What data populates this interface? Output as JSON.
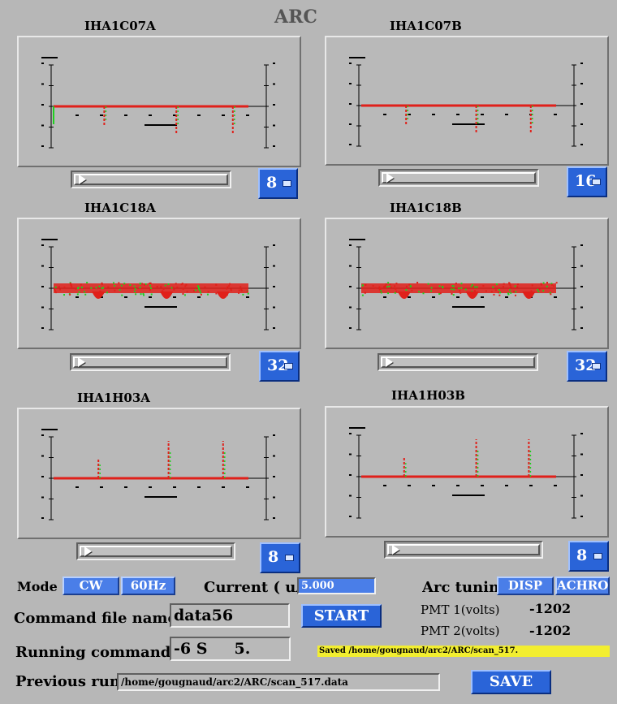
{
  "app": {
    "title": "ARC"
  },
  "plots": [
    {
      "title": "IHA1C07A",
      "selector": "8",
      "kind": "dip",
      "peaks": [
        0.26,
        0.63,
        0.92
      ]
    },
    {
      "title": "IHA1C07B",
      "selector": "16",
      "kind": "dip",
      "peaks": [
        0.23,
        0.59,
        0.87
      ]
    },
    {
      "title": "IHA1C18A",
      "selector": "32",
      "kind": "noise",
      "peaks": [
        0.23,
        0.58,
        0.87
      ]
    },
    {
      "title": "IHA1C18B",
      "selector": "32",
      "kind": "noise",
      "peaks": [
        0.22,
        0.57,
        0.86
      ]
    },
    {
      "title": "IHA1H03A",
      "selector": "8",
      "kind": "spike",
      "peaks": [
        0.23,
        0.59,
        0.87
      ]
    },
    {
      "title": "IHA1H03B",
      "selector": "8",
      "kind": "spike",
      "peaks": [
        0.22,
        0.59,
        0.86
      ]
    }
  ],
  "controls": {
    "mode_label": "Mode",
    "mode_cw": "CW",
    "mode_60hz": "60Hz",
    "current_label": "Current ( uA",
    "current_value": "5.000",
    "arc_tuning_label": "Arc tuning",
    "disp": "DISP",
    "achro": "ACHRO",
    "command_file_label": "Command file name",
    "command_file_value": "data56",
    "start": "START",
    "pmt1_label": "PMT 1(volts)",
    "pmt1_value": "-1202",
    "pmt2_label": "PMT 2(volts)",
    "pmt2_value": "-1202",
    "running_label": "Running command",
    "running_value": "-6 S     5.",
    "status_message": "Saved /home/gougnaud/arc2/ARC/scan_517.",
    "previous_label": "Previous run",
    "previous_value": "/home/gougnaud/arc2/ARC/scan_517.data",
    "save": "SAVE"
  },
  "colors": {
    "trace_red": "#e0201a",
    "trace_green": "#1fd01f",
    "accent": "#2a64d8",
    "status_bg": "#f2ee30"
  }
}
